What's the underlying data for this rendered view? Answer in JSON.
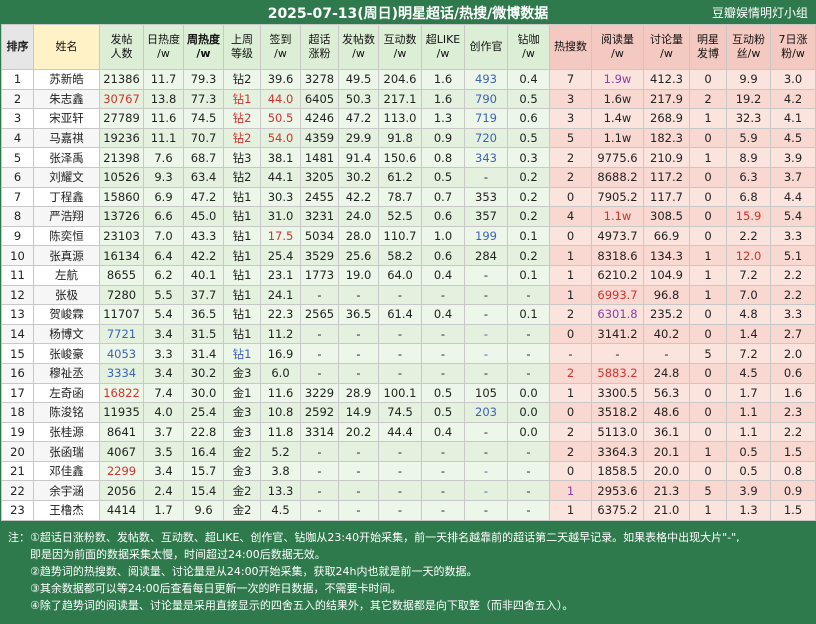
{
  "title": "2025-07-13(周日)明星超话/热搜/微博数据",
  "source": "豆瓣娱情明灯小组",
  "headers": [
    {
      "l1": "排序",
      "l2": ""
    },
    {
      "l1": "姓名",
      "l2": ""
    },
    {
      "l1": "发帖",
      "l2": "人数"
    },
    {
      "l1": "日热度",
      "l2": "/w"
    },
    {
      "l1": "周热度",
      "l2": "/w"
    },
    {
      "l1": "上周",
      "l2": "等级"
    },
    {
      "l1": "签到",
      "l2": "/w"
    },
    {
      "l1": "超话",
      "l2": "涨粉"
    },
    {
      "l1": "发帖数",
      "l2": "/w"
    },
    {
      "l1": "互动数",
      "l2": "/w"
    },
    {
      "l1": "超LIKE",
      "l2": "/w"
    },
    {
      "l1": "创作官",
      "l2": ""
    },
    {
      "l1": "钻咖",
      "l2": "/w"
    },
    {
      "l1": "热搜数",
      "l2": ""
    },
    {
      "l1": "阅读量",
      "l2": "/w"
    },
    {
      "l1": "讨论量",
      "l2": "/w"
    },
    {
      "l1": "明星",
      "l2": "发博"
    },
    {
      "l1": "互动粉",
      "l2": "丝/w"
    },
    {
      "l1": "7日涨",
      "l2": "粉/w"
    }
  ],
  "rows": [
    [
      "1",
      "苏新皓",
      "21386",
      "11.7",
      "79.3",
      "钻2",
      "39.6",
      "3278",
      "49.5",
      "204.6",
      "1.6",
      "493",
      "0.4",
      "7",
      "1.9w",
      "412.3",
      "0",
      "9.9",
      "3.0"
    ],
    [
      "2",
      "朱志鑫",
      "30767",
      "13.8",
      "77.3",
      "钻1",
      "44.0",
      "6405",
      "50.3",
      "217.1",
      "1.6",
      "790",
      "0.5",
      "3",
      "1.6w",
      "217.9",
      "2",
      "19.2",
      "4.2"
    ],
    [
      "3",
      "宋亚轩",
      "27789",
      "11.6",
      "74.5",
      "钻2",
      "50.5",
      "4246",
      "47.2",
      "113.0",
      "1.3",
      "719",
      "0.6",
      "3",
      "1.4w",
      "268.9",
      "1",
      "32.3",
      "4.1"
    ],
    [
      "4",
      "马嘉祺",
      "19236",
      "11.1",
      "70.7",
      "钻2",
      "54.0",
      "4359",
      "29.9",
      "91.8",
      "0.9",
      "720",
      "0.5",
      "5",
      "1.1w",
      "182.3",
      "0",
      "5.9",
      "4.5"
    ],
    [
      "5",
      "张泽禹",
      "21398",
      "7.6",
      "68.7",
      "钻3",
      "38.1",
      "1481",
      "91.4",
      "150.6",
      "0.8",
      "343",
      "0.3",
      "2",
      "9775.6",
      "210.9",
      "1",
      "8.9",
      "3.9"
    ],
    [
      "6",
      "刘耀文",
      "10526",
      "9.3",
      "63.4",
      "钻2",
      "44.1",
      "3205",
      "30.2",
      "61.2",
      "0.5",
      "-",
      "0.2",
      "2",
      "8688.2",
      "117.2",
      "0",
      "6.3",
      "3.7"
    ],
    [
      "7",
      "丁程鑫",
      "15860",
      "6.9",
      "47.2",
      "钻1",
      "30.3",
      "2455",
      "42.2",
      "78.7",
      "0.7",
      "353",
      "0.2",
      "0",
      "7905.2",
      "117.7",
      "0",
      "6.8",
      "4.4"
    ],
    [
      "8",
      "严浩翔",
      "13726",
      "6.6",
      "45.0",
      "钻1",
      "31.0",
      "3231",
      "24.0",
      "52.5",
      "0.6",
      "357",
      "0.2",
      "4",
      "1.1w",
      "308.5",
      "0",
      "15.9",
      "5.4"
    ],
    [
      "9",
      "陈奕恒",
      "23103",
      "7.0",
      "43.3",
      "钻1",
      "17.5",
      "5034",
      "28.0",
      "110.7",
      "1.0",
      "199",
      "0.1",
      "0",
      "4973.7",
      "66.9",
      "0",
      "2.2",
      "3.3"
    ],
    [
      "10",
      "张真源",
      "16134",
      "6.4",
      "42.2",
      "钻1",
      "25.4",
      "3529",
      "25.6",
      "58.2",
      "0.6",
      "284",
      "0.2",
      "1",
      "8318.6",
      "134.3",
      "1",
      "12.0",
      "5.1"
    ],
    [
      "11",
      "左航",
      "8655",
      "6.2",
      "40.1",
      "钻1",
      "23.1",
      "1773",
      "19.0",
      "64.0",
      "0.4",
      "-",
      "0.1",
      "1",
      "6210.2",
      "104.9",
      "1",
      "7.2",
      "2.2"
    ],
    [
      "12",
      "张极",
      "7280",
      "5.5",
      "37.7",
      "钻1",
      "24.1",
      "-",
      "-",
      "-",
      "-",
      "-",
      "-",
      "1",
      "6993.7",
      "96.8",
      "1",
      "7.0",
      "2.2"
    ],
    [
      "13",
      "贺峻霖",
      "11707",
      "5.4",
      "36.5",
      "钻1",
      "22.3",
      "2565",
      "36.5",
      "61.4",
      "0.4",
      "-",
      "0.1",
      "2",
      "6301.8",
      "235.2",
      "0",
      "4.8",
      "3.3"
    ],
    [
      "14",
      "杨博文",
      "7721",
      "3.4",
      "31.5",
      "钻1",
      "11.2",
      "-",
      "-",
      "-",
      "-",
      "-",
      "-",
      "0",
      "3141.2",
      "40.2",
      "0",
      "1.4",
      "2.7"
    ],
    [
      "15",
      "张峻豪",
      "4053",
      "3.3",
      "31.4",
      "钻1",
      "16.9",
      "-",
      "-",
      "-",
      "-",
      "-",
      "-",
      "-",
      "-",
      "-",
      "5",
      "7.2",
      "2.0"
    ],
    [
      "16",
      "穆祉丞",
      "3334",
      "3.4",
      "30.2",
      "金3",
      "6.0",
      "-",
      "-",
      "-",
      "-",
      "-",
      "-",
      "2",
      "5883.2",
      "24.8",
      "0",
      "4.5",
      "0.6"
    ],
    [
      "17",
      "左奇函",
      "16822",
      "7.4",
      "30.0",
      "金1",
      "11.6",
      "3229",
      "28.9",
      "100.1",
      "0.5",
      "105",
      "0.0",
      "1",
      "3300.5",
      "56.3",
      "0",
      "1.7",
      "1.6"
    ],
    [
      "18",
      "陈浚铭",
      "11935",
      "4.0",
      "25.4",
      "金3",
      "10.8",
      "2592",
      "14.9",
      "74.5",
      "0.5",
      "203",
      "0.0",
      "0",
      "3518.2",
      "48.6",
      "0",
      "1.1",
      "2.3"
    ],
    [
      "19",
      "张桂源",
      "8641",
      "3.7",
      "22.8",
      "金3",
      "11.8",
      "3314",
      "20.2",
      "44.4",
      "0.4",
      "-",
      "0.0",
      "2",
      "5113.0",
      "36.1",
      "0",
      "1.1",
      "2.2"
    ],
    [
      "20",
      "张函瑞",
      "4067",
      "3.5",
      "16.4",
      "金2",
      "5.2",
      "-",
      "-",
      "-",
      "-",
      "-",
      "-",
      "2",
      "3364.3",
      "20.1",
      "1",
      "0.5",
      "1.5"
    ],
    [
      "21",
      "邓佳鑫",
      "2299",
      "3.4",
      "15.7",
      "金3",
      "3.8",
      "-",
      "-",
      "-",
      "-",
      "-",
      "-",
      "0",
      "1858.5",
      "20.0",
      "0",
      "0.5",
      "0.8"
    ],
    [
      "22",
      "余宇涵",
      "2056",
      "2.4",
      "15.4",
      "金2",
      "13.3",
      "-",
      "-",
      "-",
      "-",
      "-",
      "-",
      "1",
      "2953.6",
      "21.3",
      "5",
      "3.9",
      "0.9"
    ],
    [
      "23",
      "王橹杰",
      "4414",
      "1.7",
      "9.6",
      "金2",
      "4.5",
      "-",
      "-",
      "-",
      "-",
      "-",
      "-",
      "1",
      "6375.2",
      "21.0",
      "1",
      "1.3",
      "1.5"
    ]
  ],
  "highlights": [
    [
      1,
      12,
      "blue"
    ],
    [
      2,
      12,
      "blue"
    ],
    [
      3,
      12,
      "blue"
    ],
    [
      4,
      12,
      "blue"
    ],
    [
      5,
      12,
      "blue"
    ],
    [
      9,
      12,
      "blue"
    ],
    [
      14,
      12,
      "blue"
    ],
    [
      15,
      12,
      "blue"
    ],
    [
      18,
      12,
      "blue"
    ],
    [
      21,
      12,
      "blue"
    ],
    [
      22,
      12,
      "blue"
    ],
    [
      2,
      3,
      "red"
    ],
    [
      17,
      3,
      "red"
    ],
    [
      21,
      3,
      "red"
    ],
    [
      14,
      3,
      "blue"
    ],
    [
      15,
      3,
      "blue"
    ],
    [
      16,
      3,
      "blue"
    ],
    [
      2,
      6,
      "red"
    ],
    [
      3,
      6,
      "red"
    ],
    [
      4,
      6,
      "red"
    ],
    [
      15,
      6,
      "blue"
    ],
    [
      2,
      7,
      "red"
    ],
    [
      3,
      7,
      "red"
    ],
    [
      4,
      7,
      "red"
    ],
    [
      9,
      7,
      "red"
    ],
    [
      1,
      15,
      "purple"
    ],
    [
      8,
      15,
      "red"
    ],
    [
      12,
      15,
      "red"
    ],
    [
      13,
      15,
      "purple"
    ],
    [
      16,
      15,
      "red"
    ],
    [
      16,
      14,
      "red"
    ],
    [
      22,
      14,
      "purple"
    ],
    [
      8,
      18,
      "red"
    ],
    [
      10,
      18,
      "red"
    ]
  ],
  "notes": [
    "注：①超话日涨粉数、发帖数、互动数、超LIKE、创作官、钻咖从23:40开始采集，前一天排名越靠前的超话第二天越早记录。如果表格中出现大片\"-\",",
    "即是因为前面的数据采集太慢，时间超过24:00后数据无效。",
    "②趋势词的热搜数、阅读量、讨论量是从24:00开始采集，获取24h内也就是前一天的数据。",
    "③其余数据都可以等24:00后查看每日更新一次的昨日数据，不需要卡时间。",
    "④除了趋势词的阅读量、讨论量是采用直接显示的四舍五入的结果外，其它数据都是向下取整（而非四舍五入）。"
  ]
}
